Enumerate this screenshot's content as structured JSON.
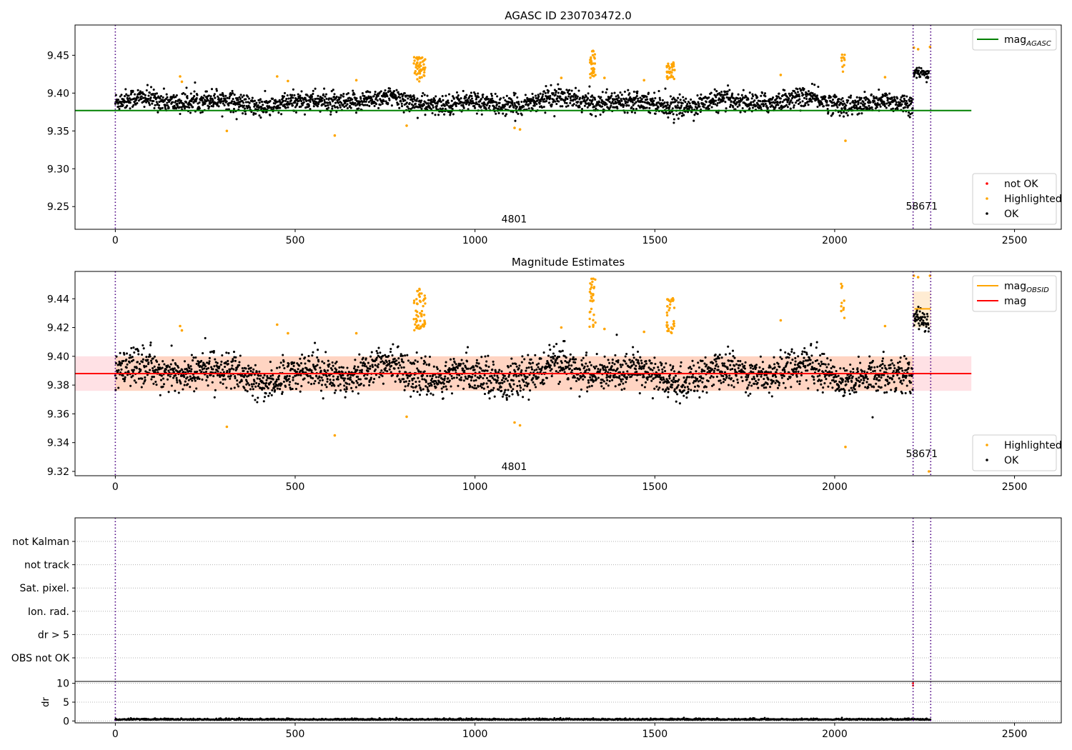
{
  "chart_data": [
    {
      "type": "scatter",
      "title": "AGASC ID 230703472.0",
      "xlim": [
        -112,
        2630
      ],
      "ylim": [
        9.22,
        9.49
      ],
      "x_ticks": [
        0,
        500,
        1000,
        1500,
        2000,
        2500
      ],
      "y_ticks": [
        9.25,
        9.3,
        9.35,
        9.4,
        9.45
      ],
      "y_tick_labels": [
        "9.25",
        "9.30",
        "9.35",
        "9.40",
        "9.45"
      ],
      "observation_boundaries": [
        0,
        2218,
        2267
      ],
      "observation_labels": [
        {
          "text": "4801",
          "x": 1109,
          "y": 9.229
        },
        {
          "text": "58671",
          "x": 2242,
          "y": 9.246
        }
      ],
      "reference_lines": [
        {
          "name": "mag",
          "subscript": "AGASC",
          "value": 9.377,
          "x_range": [
            -112,
            2380
          ],
          "color": "#008000"
        }
      ],
      "point_groups": [
        {
          "name": "not OK",
          "color": "#ff0000",
          "points": []
        },
        {
          "name": "Highlighted",
          "color": "#ffa500",
          "points": [
            [
              180,
              9.422
            ],
            [
              185,
              9.415
            ],
            [
              310,
              9.35
            ],
            [
              450,
              9.422
            ],
            [
              480,
              9.416
            ],
            [
              610,
              9.344
            ],
            [
              670,
              9.417
            ],
            [
              810,
              9.357
            ],
            [
              1110,
              9.354
            ],
            [
              1125,
              9.352
            ],
            [
              1240,
              9.42
            ],
            [
              1360,
              9.42
            ],
            [
              1470,
              9.417
            ],
            [
              1850,
              9.424
            ],
            [
              2030,
              9.337
            ],
            [
              2140,
              9.421
            ],
            [
              2220,
              9.46
            ],
            [
              2232,
              9.458
            ],
            [
              2265,
              9.461
            ]
          ]
        },
        {
          "name": "OK",
          "color": "#000000",
          "points": []
        }
      ],
      "highlight_clusters": [
        {
          "x_range": [
            830,
            862
          ],
          "y_range": [
            9.415,
            9.448
          ],
          "count": 55
        },
        {
          "x_range": [
            1318,
            1335
          ],
          "y_range": [
            9.42,
            9.456
          ],
          "count": 30
        },
        {
          "x_range": [
            1533,
            1555
          ],
          "y_range": [
            9.418,
            9.441
          ],
          "count": 35
        },
        {
          "x_range": [
            2018,
            2028
          ],
          "y_range": [
            9.425,
            9.451
          ],
          "count": 10
        }
      ],
      "ok_bands": [
        {
          "x_range": [
            0,
            2218
          ],
          "center": 9.388,
          "spread": 0.012,
          "density": 1.0
        },
        {
          "x_range": [
            2220,
            2262
          ],
          "center": 9.43,
          "spread": 0.008,
          "density": 1.0
        }
      ],
      "legends": [
        {
          "placement": "top-right",
          "entries": [
            {
              "label": "mag",
              "subscript": "AGASC",
              "kind": "line",
              "color": "#008000"
            }
          ]
        },
        {
          "placement": "bottom-right",
          "entries": [
            {
              "label": "not OK",
              "kind": "dot",
              "color": "#ff0000"
            },
            {
              "label": "Highlighted",
              "kind": "dot",
              "color": "#ffa500"
            },
            {
              "label": "OK",
              "kind": "dot",
              "color": "#000000"
            }
          ]
        }
      ]
    },
    {
      "type": "scatter",
      "title": "Magnitude Estimates",
      "xlim": [
        -112,
        2630
      ],
      "ylim": [
        9.317,
        9.459
      ],
      "x_ticks": [
        0,
        500,
        1000,
        1500,
        2000,
        2500
      ],
      "y_ticks": [
        9.32,
        9.34,
        9.36,
        9.38,
        9.4,
        9.42,
        9.44
      ],
      "y_tick_labels": [
        "9.32",
        "9.34",
        "9.36",
        "9.38",
        "9.40",
        "9.42",
        "9.44"
      ],
      "observation_boundaries": [
        0,
        2218,
        2267
      ],
      "observation_labels": [
        {
          "text": "4801",
          "x": 1109,
          "y": 9.321
        },
        {
          "text": "58671",
          "x": 2242,
          "y": 9.33
        }
      ],
      "reference_lines": [
        {
          "name": "mag",
          "value": 9.388,
          "x_range": [
            -112,
            2380
          ],
          "color": "#ff0000"
        },
        {
          "name": "mag",
          "subscript": "OBSID",
          "value": 9.433,
          "x_range": [
            2222,
            2267
          ],
          "color": "#ffa500"
        }
      ],
      "bands": [
        {
          "y_range": [
            9.376,
            9.4
          ],
          "x_range": [
            -112,
            0
          ],
          "color": "#ffc8d0",
          "opacity": 0.55
        },
        {
          "y_range": [
            9.376,
            9.4
          ],
          "x_range": [
            0,
            2218
          ],
          "color": "#ffb89a",
          "opacity": 0.6
        },
        {
          "y_range": [
            9.376,
            9.4
          ],
          "x_range": [
            2218,
            2380
          ],
          "color": "#ffc8d0",
          "opacity": 0.55
        },
        {
          "y_range": [
            9.42,
            9.445
          ],
          "x_range": [
            2218,
            2267
          ],
          "color": "#ffd9a8",
          "opacity": 0.5
        }
      ],
      "point_groups": [
        {
          "name": "Highlighted",
          "color": "#ffa500",
          "points": [
            [
              180,
              9.421
            ],
            [
              185,
              9.418
            ],
            [
              310,
              9.351
            ],
            [
              450,
              9.422
            ],
            [
              480,
              9.416
            ],
            [
              610,
              9.345
            ],
            [
              670,
              9.416
            ],
            [
              810,
              9.358
            ],
            [
              1110,
              9.354
            ],
            [
              1125,
              9.352
            ],
            [
              1240,
              9.42
            ],
            [
              1360,
              9.419
            ],
            [
              1470,
              9.417
            ],
            [
              1850,
              9.425
            ],
            [
              2030,
              9.337
            ],
            [
              2140,
              9.421
            ],
            [
              2220,
              9.456
            ],
            [
              2232,
              9.455
            ],
            [
              2262,
              9.32
            ],
            [
              2265,
              9.456
            ]
          ]
        },
        {
          "name": "OK",
          "color": "#000000",
          "points": []
        }
      ],
      "highlight_clusters": [
        {
          "x_range": [
            830,
            862
          ],
          "y_range": [
            9.417,
            9.448
          ],
          "count": 55
        },
        {
          "x_range": [
            1318,
            1335
          ],
          "y_range": [
            9.417,
            9.456
          ],
          "count": 30
        },
        {
          "x_range": [
            1533,
            1555
          ],
          "y_range": [
            9.416,
            9.441
          ],
          "count": 35
        },
        {
          "x_range": [
            2018,
            2028
          ],
          "y_range": [
            9.426,
            9.452
          ],
          "count": 10
        }
      ],
      "ok_bands": [
        {
          "x_range": [
            0,
            2218
          ],
          "center": 9.388,
          "spread": 0.011,
          "density": 1.0
        },
        {
          "x_range": [
            2220,
            2262
          ],
          "center": 9.43,
          "spread": 0.007,
          "density": 1.0
        }
      ],
      "legends": [
        {
          "placement": "top-right",
          "entries": [
            {
              "label": "mag",
              "subscript": "OBSID",
              "kind": "line",
              "color": "#ffa500"
            },
            {
              "label": "mag",
              "kind": "line",
              "color": "#ff0000"
            }
          ]
        },
        {
          "placement": "bottom-right",
          "entries": [
            {
              "label": "Highlighted",
              "kind": "dot",
              "color": "#ffa500"
            },
            {
              "label": "OK",
              "kind": "dot",
              "color": "#000000"
            }
          ]
        }
      ]
    },
    {
      "type": "scatter",
      "title": "",
      "xlim": [
        -112,
        2630
      ],
      "categories": [
        "not Kalman",
        "not track",
        "Sat. pixel.",
        "Ion. rad.",
        "dr > 5",
        "OBS not OK"
      ],
      "grid": "horizontal-dotted",
      "observation_boundaries": [
        0,
        2218,
        2267
      ],
      "flag_points": [
        {
          "category": "not Kalman",
          "x": 2218,
          "color": "#000000"
        }
      ]
    },
    {
      "type": "scatter",
      "ylabel": "dr",
      "xlim": [
        -112,
        2630
      ],
      "ylim": [
        -0.5,
        10.5
      ],
      "x_ticks": [
        0,
        500,
        1000,
        1500,
        2000,
        2500
      ],
      "y_ticks": [
        0,
        5,
        10
      ],
      "grid": "horizontal-dotted",
      "observation_boundaries": [
        0,
        2218,
        2267
      ],
      "series": [
        {
          "name": "",
          "color": "#000000",
          "description": "per-frame dr along near-zero baseline",
          "x_range": [
            0,
            2267
          ],
          "center": 0.3,
          "spread": 0.2
        }
      ],
      "outliers": [
        {
          "x": 2218,
          "y": 10.0,
          "color": "#ff0000"
        },
        {
          "x": 2218,
          "y": 9.4,
          "color": "#ff0000"
        }
      ]
    }
  ]
}
